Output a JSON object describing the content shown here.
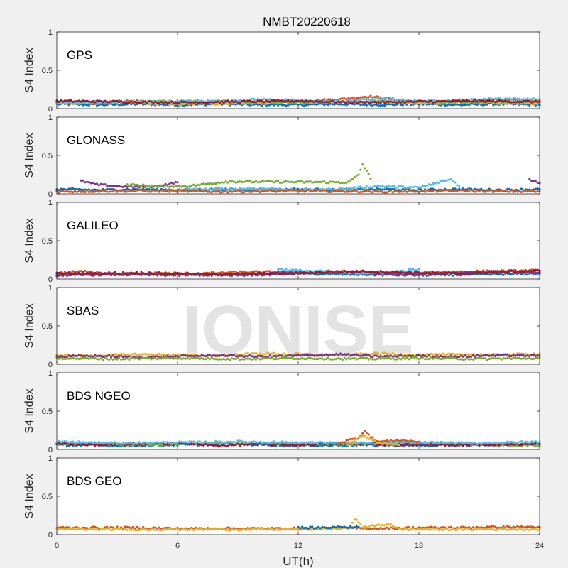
{
  "title": "NMBT20220618",
  "watermark": "IONISE",
  "colors": [
    "#0072BD",
    "#D95319",
    "#EDB120",
    "#7E2F8E",
    "#77AC30",
    "#4DBEEE",
    "#A2142F"
  ],
  "chart_data": {
    "type": "scatter",
    "title": "NMBT20220618",
    "xlabel": "UT(h)",
    "ylabel": "S4 Index",
    "xlim": [
      0,
      24
    ],
    "ylim": [
      0,
      1
    ],
    "x_ticks": [
      "0",
      "6",
      "12",
      "18",
      "24"
    ],
    "y_ticks": [
      "0",
      "0.5",
      "1"
    ],
    "grid": false,
    "panels": [
      {
        "label": "GPS",
        "series": [
          {
            "color_index": 0,
            "x": [
              0,
              2,
              4,
              6,
              8,
              10,
              12,
              14,
              16,
              18,
              20,
              22,
              24
            ],
            "y": [
              0.06,
              0.05,
              0.06,
              0.05,
              0.06,
              0.05,
              0.05,
              0.06,
              0.05,
              0.06,
              0.05,
              0.06,
              0.05
            ]
          },
          {
            "color_index": 1,
            "x": [
              0,
              2,
              4,
              6,
              8,
              10,
              12,
              14,
              15.5,
              18,
              20,
              22,
              24
            ],
            "y": [
              0.08,
              0.09,
              0.1,
              0.08,
              0.09,
              0.08,
              0.1,
              0.12,
              0.16,
              0.08,
              0.09,
              0.12,
              0.1
            ]
          },
          {
            "color_index": 2,
            "x": [
              0,
              3,
              6,
              9,
              12,
              15,
              18,
              21,
              24
            ],
            "y": [
              0.07,
              0.08,
              0.06,
              0.07,
              0.08,
              0.09,
              0.07,
              0.08,
              0.07
            ]
          },
          {
            "color_index": 4,
            "x": [
              0,
              3,
              6,
              9,
              12,
              15,
              18,
              21,
              24
            ],
            "y": [
              0.09,
              0.08,
              0.1,
              0.09,
              0.08,
              0.1,
              0.09,
              0.08,
              0.09
            ]
          },
          {
            "color_index": 5,
            "x": [
              0,
              4,
              8,
              10,
              14,
              16,
              18,
              20,
              22,
              24
            ],
            "y": [
              0.08,
              0.09,
              0.1,
              0.12,
              0.09,
              0.13,
              0.1,
              0.11,
              0.13,
              0.12
            ]
          },
          {
            "color_index": 6,
            "x": [
              0,
              3,
              6,
              9,
              12,
              15,
              18,
              21,
              24
            ],
            "y": [
              0.1,
              0.09,
              0.08,
              0.09,
              0.1,
              0.08,
              0.09,
              0.1,
              0.09
            ]
          }
        ]
      },
      {
        "label": "GLONASS",
        "series": [
          {
            "color_index": 0,
            "x": [
              0,
              2,
              4,
              6,
              8,
              10,
              12,
              14,
              16,
              18,
              20,
              22,
              24
            ],
            "y": [
              0.06,
              0.05,
              0.06,
              0.05,
              0.06,
              0.05,
              0.06,
              0.05,
              0.06,
              0.05,
              0.06,
              0.05,
              0.06
            ]
          },
          {
            "color_index": 3,
            "x": [
              1.2,
              2,
              3,
              4,
              5,
              6
            ],
            "y": [
              0.17,
              0.12,
              0.1,
              0.09,
              0.1,
              0.15
            ]
          },
          {
            "color_index": 4,
            "x": [
              3.5,
              5,
              6.5,
              7.5,
              8.4,
              14.5,
              15,
              15.2,
              15.4,
              15.6
            ],
            "y": [
              0.12,
              0.1,
              0.1,
              0.13,
              0.16,
              0.15,
              0.25,
              0.38,
              0.3,
              0.2
            ]
          },
          {
            "color_index": 5,
            "x": [
              6,
              8,
              10,
              12,
              14,
              16,
              18,
              19.6,
              20
            ],
            "y": [
              0.05,
              0.06,
              0.07,
              0.05,
              0.06,
              0.1,
              0.08,
              0.19,
              0.1
            ]
          },
          {
            "color_index": 1,
            "x": [
              0,
              4,
              8,
              12,
              16,
              20,
              24
            ],
            "y": [
              0.03,
              0.04,
              0.03,
              0.04,
              0.03,
              0.04,
              0.03
            ]
          },
          {
            "color_index": 3,
            "x": [
              23.5,
              24
            ],
            "y": [
              0.18,
              0.14
            ]
          }
        ]
      },
      {
        "label": "GALILEO",
        "series": [
          {
            "color_index": 0,
            "x": [
              0,
              3,
              6,
              9,
              12,
              15,
              18,
              21,
              24
            ],
            "y": [
              0.06,
              0.07,
              0.06,
              0.05,
              0.07,
              0.06,
              0.05,
              0.06,
              0.07
            ]
          },
          {
            "color_index": 1,
            "x": [
              0,
              1.5,
              3,
              5,
              7,
              9,
              14,
              17,
              21,
              24
            ],
            "y": [
              0.08,
              0.1,
              0.06,
              0.08,
              0.07,
              0.09,
              0.1,
              0.08,
              0.1,
              0.11
            ]
          },
          {
            "color_index": 3,
            "x": [
              0,
              3,
              6,
              9,
              12,
              14.5,
              16,
              18,
              22,
              24
            ],
            "y": [
              0.05,
              0.06,
              0.05,
              0.06,
              0.08,
              0.1,
              0.07,
              0.06,
              0.1,
              0.09
            ]
          },
          {
            "color_index": 5,
            "x": [
              11,
              12,
              13,
              15,
              17,
              18
            ],
            "y": [
              0.13,
              0.11,
              0.1,
              0.08,
              0.1,
              0.13
            ]
          },
          {
            "color_index": 6,
            "x": [
              0,
              4,
              8,
              12,
              15,
              20,
              24
            ],
            "y": [
              0.07,
              0.08,
              0.06,
              0.08,
              0.1,
              0.07,
              0.11
            ]
          }
        ]
      },
      {
        "label": "SBAS",
        "series": [
          {
            "color_index": 2,
            "x": [
              0,
              2,
              4,
              6,
              8,
              10,
              12,
              14,
              16,
              18,
              20,
              22,
              24
            ],
            "y": [
              0.12,
              0.11,
              0.13,
              0.12,
              0.11,
              0.14,
              0.13,
              0.12,
              0.14,
              0.12,
              0.13,
              0.12,
              0.14
            ]
          },
          {
            "color_index": 3,
            "x": [
              0,
              2,
              4,
              6,
              8,
              10,
              12,
              14,
              16,
              18,
              20,
              22,
              24
            ],
            "y": [
              0.1,
              0.11,
              0.09,
              0.1,
              0.12,
              0.1,
              0.11,
              0.13,
              0.1,
              0.11,
              0.1,
              0.12,
              0.11
            ]
          },
          {
            "color_index": 4,
            "x": [
              0,
              3,
              6,
              9,
              12,
              15,
              18,
              21,
              24
            ],
            "y": [
              0.08,
              0.07,
              0.08,
              0.07,
              0.08,
              0.07,
              0.08,
              0.07,
              0.08
            ]
          }
        ]
      },
      {
        "label": "BDS NGEO",
        "series": [
          {
            "color_index": 0,
            "x": [
              0,
              3,
              6,
              9,
              12,
              15,
              18,
              21,
              24
            ],
            "y": [
              0.06,
              0.05,
              0.06,
              0.07,
              0.05,
              0.06,
              0.05,
              0.06,
              0.07
            ]
          },
          {
            "color_index": 4,
            "x": [
              0,
              2,
              4,
              6,
              8,
              10,
              14,
              18,
              22,
              24
            ],
            "y": [
              0.07,
              0.08,
              0.06,
              0.07,
              0.09,
              0.08,
              0.07,
              0.09,
              0.06,
              0.05
            ]
          },
          {
            "color_index": 6,
            "x": [
              0,
              2,
              4,
              6,
              8,
              10,
              12,
              14,
              16,
              20,
              24
            ],
            "y": [
              0.08,
              0.06,
              0.07,
              0.08,
              0.05,
              0.07,
              0.06,
              0.08,
              0.07,
              0.06,
              0.07
            ]
          },
          {
            "color_index": 5,
            "x": [
              0,
              3,
              6,
              9,
              12,
              15,
              18,
              21,
              24
            ],
            "y": [
              0.1,
              0.08,
              0.09,
              0.1,
              0.09,
              0.08,
              0.09,
              0.08,
              0.1
            ]
          },
          {
            "color_index": 1,
            "x": [
              14,
              14.5,
              15,
              15.3,
              15.6,
              16,
              17,
              18
            ],
            "y": [
              0.08,
              0.12,
              0.15,
              0.25,
              0.16,
              0.1,
              0.12,
              0.1
            ]
          },
          {
            "color_index": 2,
            "x": [
              14.5,
              15.2,
              16,
              17
            ],
            "y": [
              0.06,
              0.18,
              0.08,
              0.06
            ]
          }
        ]
      },
      {
        "label": "BDS GEO",
        "series": [
          {
            "color_index": 1,
            "x": [
              0,
              2,
              4,
              6,
              8,
              10,
              12,
              14,
              16,
              18,
              20,
              22,
              24
            ],
            "y": [
              0.09,
              0.09,
              0.09,
              0.08,
              0.08,
              0.08,
              0.08,
              0.09,
              0.08,
              0.09,
              0.09,
              0.1,
              0.1
            ]
          },
          {
            "color_index": 2,
            "x": [
              0,
              4,
              8,
              12,
              14.5,
              14.8,
              15.2,
              16.6,
              17,
              20,
              24
            ],
            "y": [
              0.07,
              0.07,
              0.07,
              0.07,
              0.08,
              0.21,
              0.1,
              0.14,
              0.07,
              0.07,
              0.07
            ]
          },
          {
            "color_index": 0,
            "x": [
              12,
              13,
              14,
              15
            ],
            "y": [
              0.09,
              0.09,
              0.1,
              0.1
            ]
          }
        ]
      }
    ]
  }
}
